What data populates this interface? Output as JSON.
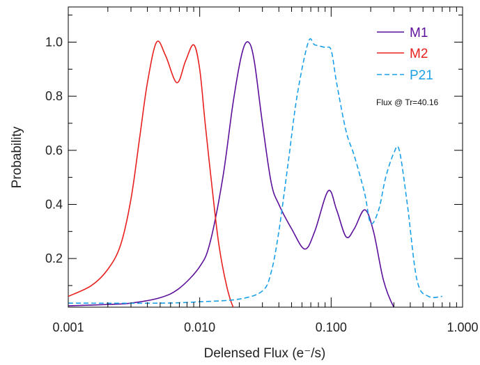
{
  "chart_data": {
    "type": "line",
    "xlabel": "Delensed Flux (e⁻/s)",
    "ylabel": "Probability",
    "x_scale": "log",
    "xlim": [
      0.001,
      1.0
    ],
    "ylim": [
      0.02,
      1.13
    ],
    "x_ticks": [
      0.001,
      0.01,
      0.1,
      1.0
    ],
    "x_tick_labels": [
      "0.001",
      "0.010",
      "0.100",
      "1.000"
    ],
    "y_ticks": [
      0.2,
      0.4,
      0.6,
      0.8,
      1.0
    ],
    "y_tick_labels": [
      "0.2",
      "0.4",
      "0.6",
      "0.8",
      "1.0"
    ],
    "grid": false,
    "legend_position": "top-right",
    "annotation": "Flux @ Tr=40.16",
    "series": [
      {
        "name": "M1",
        "color": "#5b0f9a",
        "dash": "solid",
        "x": [
          0.001,
          0.002,
          0.003,
          0.005,
          0.007,
          0.01,
          0.012,
          0.015,
          0.018,
          0.021,
          0.0235,
          0.026,
          0.03,
          0.035,
          0.04,
          0.05,
          0.063,
          0.075,
          0.095,
          0.11,
          0.13,
          0.15,
          0.18,
          0.21,
          0.25,
          0.3,
          0.34
        ],
        "y": [
          0.025,
          0.03,
          0.035,
          0.055,
          0.09,
          0.17,
          0.26,
          0.5,
          0.78,
          0.96,
          1.0,
          0.93,
          0.7,
          0.48,
          0.4,
          0.31,
          0.235,
          0.3,
          0.45,
          0.38,
          0.28,
          0.31,
          0.38,
          0.3,
          0.12,
          0.02,
          0.0
        ]
      },
      {
        "name": "M2",
        "color": "#e8201e",
        "dash": "solid",
        "x": [
          0.001,
          0.0015,
          0.002,
          0.0025,
          0.003,
          0.0035,
          0.004,
          0.0047,
          0.0055,
          0.0067,
          0.0078,
          0.009,
          0.01,
          0.011,
          0.0125,
          0.014,
          0.016,
          0.018,
          0.02
        ],
        "y": [
          0.06,
          0.1,
          0.16,
          0.25,
          0.42,
          0.65,
          0.85,
          1.0,
          0.95,
          0.85,
          0.93,
          0.99,
          0.9,
          0.7,
          0.45,
          0.25,
          0.1,
          0.02,
          0.0
        ]
      },
      {
        "name": "P21",
        "color": "#1aa0e8",
        "dash": "dashed",
        "x": [
          0.001,
          0.005,
          0.01,
          0.02,
          0.03,
          0.035,
          0.04,
          0.047,
          0.055,
          0.067,
          0.075,
          0.09,
          0.1,
          0.11,
          0.13,
          0.15,
          0.18,
          0.2,
          0.23,
          0.26,
          0.3,
          0.33,
          0.38,
          0.45,
          0.55,
          0.7
        ],
        "y": [
          0.035,
          0.035,
          0.04,
          0.05,
          0.08,
          0.15,
          0.3,
          0.55,
          0.8,
          1.0,
          0.99,
          0.98,
          0.97,
          0.85,
          0.67,
          0.58,
          0.44,
          0.33,
          0.38,
          0.5,
          0.59,
          0.6,
          0.4,
          0.12,
          0.06,
          0.06
        ]
      }
    ]
  }
}
